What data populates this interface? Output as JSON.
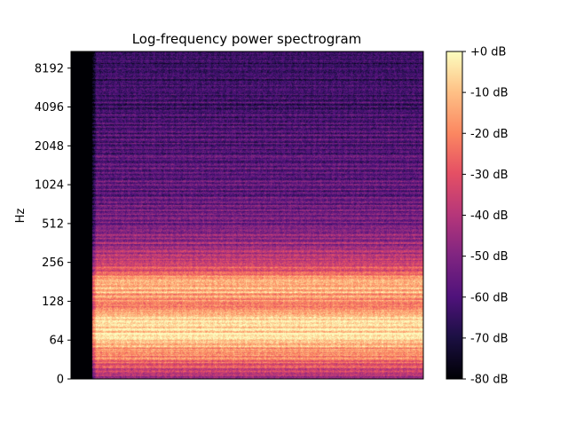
{
  "chart_data": {
    "type": "heatmap",
    "title": "Log-frequency power spectrogram",
    "xlabel": "",
    "ylabel": "Hz",
    "y_scale": "log2",
    "y_ticks": [
      "0",
      "64",
      "128",
      "256",
      "512",
      "1024",
      "2048",
      "4096",
      "8192"
    ],
    "y_tick_values": [
      0,
      64,
      128,
      256,
      512,
      1024,
      2048,
      4096,
      8192
    ],
    "ylim": [
      0,
      11025
    ],
    "colormap": "magma",
    "grid": false,
    "silent_lead_in": true,
    "colorbar": {
      "range_db": [
        -80,
        0
      ],
      "ticks": [
        "+0 dB",
        "-10 dB",
        "-20 dB",
        "-30 dB",
        "-40 dB",
        "-50 dB",
        "-60 dB",
        "-70 dB",
        "-80 dB"
      ],
      "tick_values": [
        0,
        -10,
        -20,
        -30,
        -40,
        -50,
        -60,
        -70,
        -80
      ]
    },
    "frequency_profile_db": [
      {
        "hz": 30,
        "db": -45
      },
      {
        "hz": 40,
        "db": -30
      },
      {
        "hz": 50,
        "db": -18
      },
      {
        "hz": 60,
        "db": -12
      },
      {
        "hz": 70,
        "db": -5
      },
      {
        "hz": 80,
        "db": -4
      },
      {
        "hz": 90,
        "db": -6
      },
      {
        "hz": 100,
        "db": -12
      },
      {
        "hz": 115,
        "db": -22
      },
      {
        "hz": 128,
        "db": -20
      },
      {
        "hz": 145,
        "db": -14
      },
      {
        "hz": 165,
        "db": -10
      },
      {
        "hz": 190,
        "db": -16
      },
      {
        "hz": 220,
        "db": -30
      },
      {
        "hz": 256,
        "db": -36
      },
      {
        "hz": 300,
        "db": -42
      },
      {
        "hz": 400,
        "db": -48
      },
      {
        "hz": 512,
        "db": -52
      },
      {
        "hz": 1024,
        "db": -57
      },
      {
        "hz": 2048,
        "db": -60
      },
      {
        "hz": 4096,
        "db": -62
      },
      {
        "hz": 8192,
        "db": -64
      },
      {
        "hz": 11025,
        "db": -66
      }
    ]
  }
}
